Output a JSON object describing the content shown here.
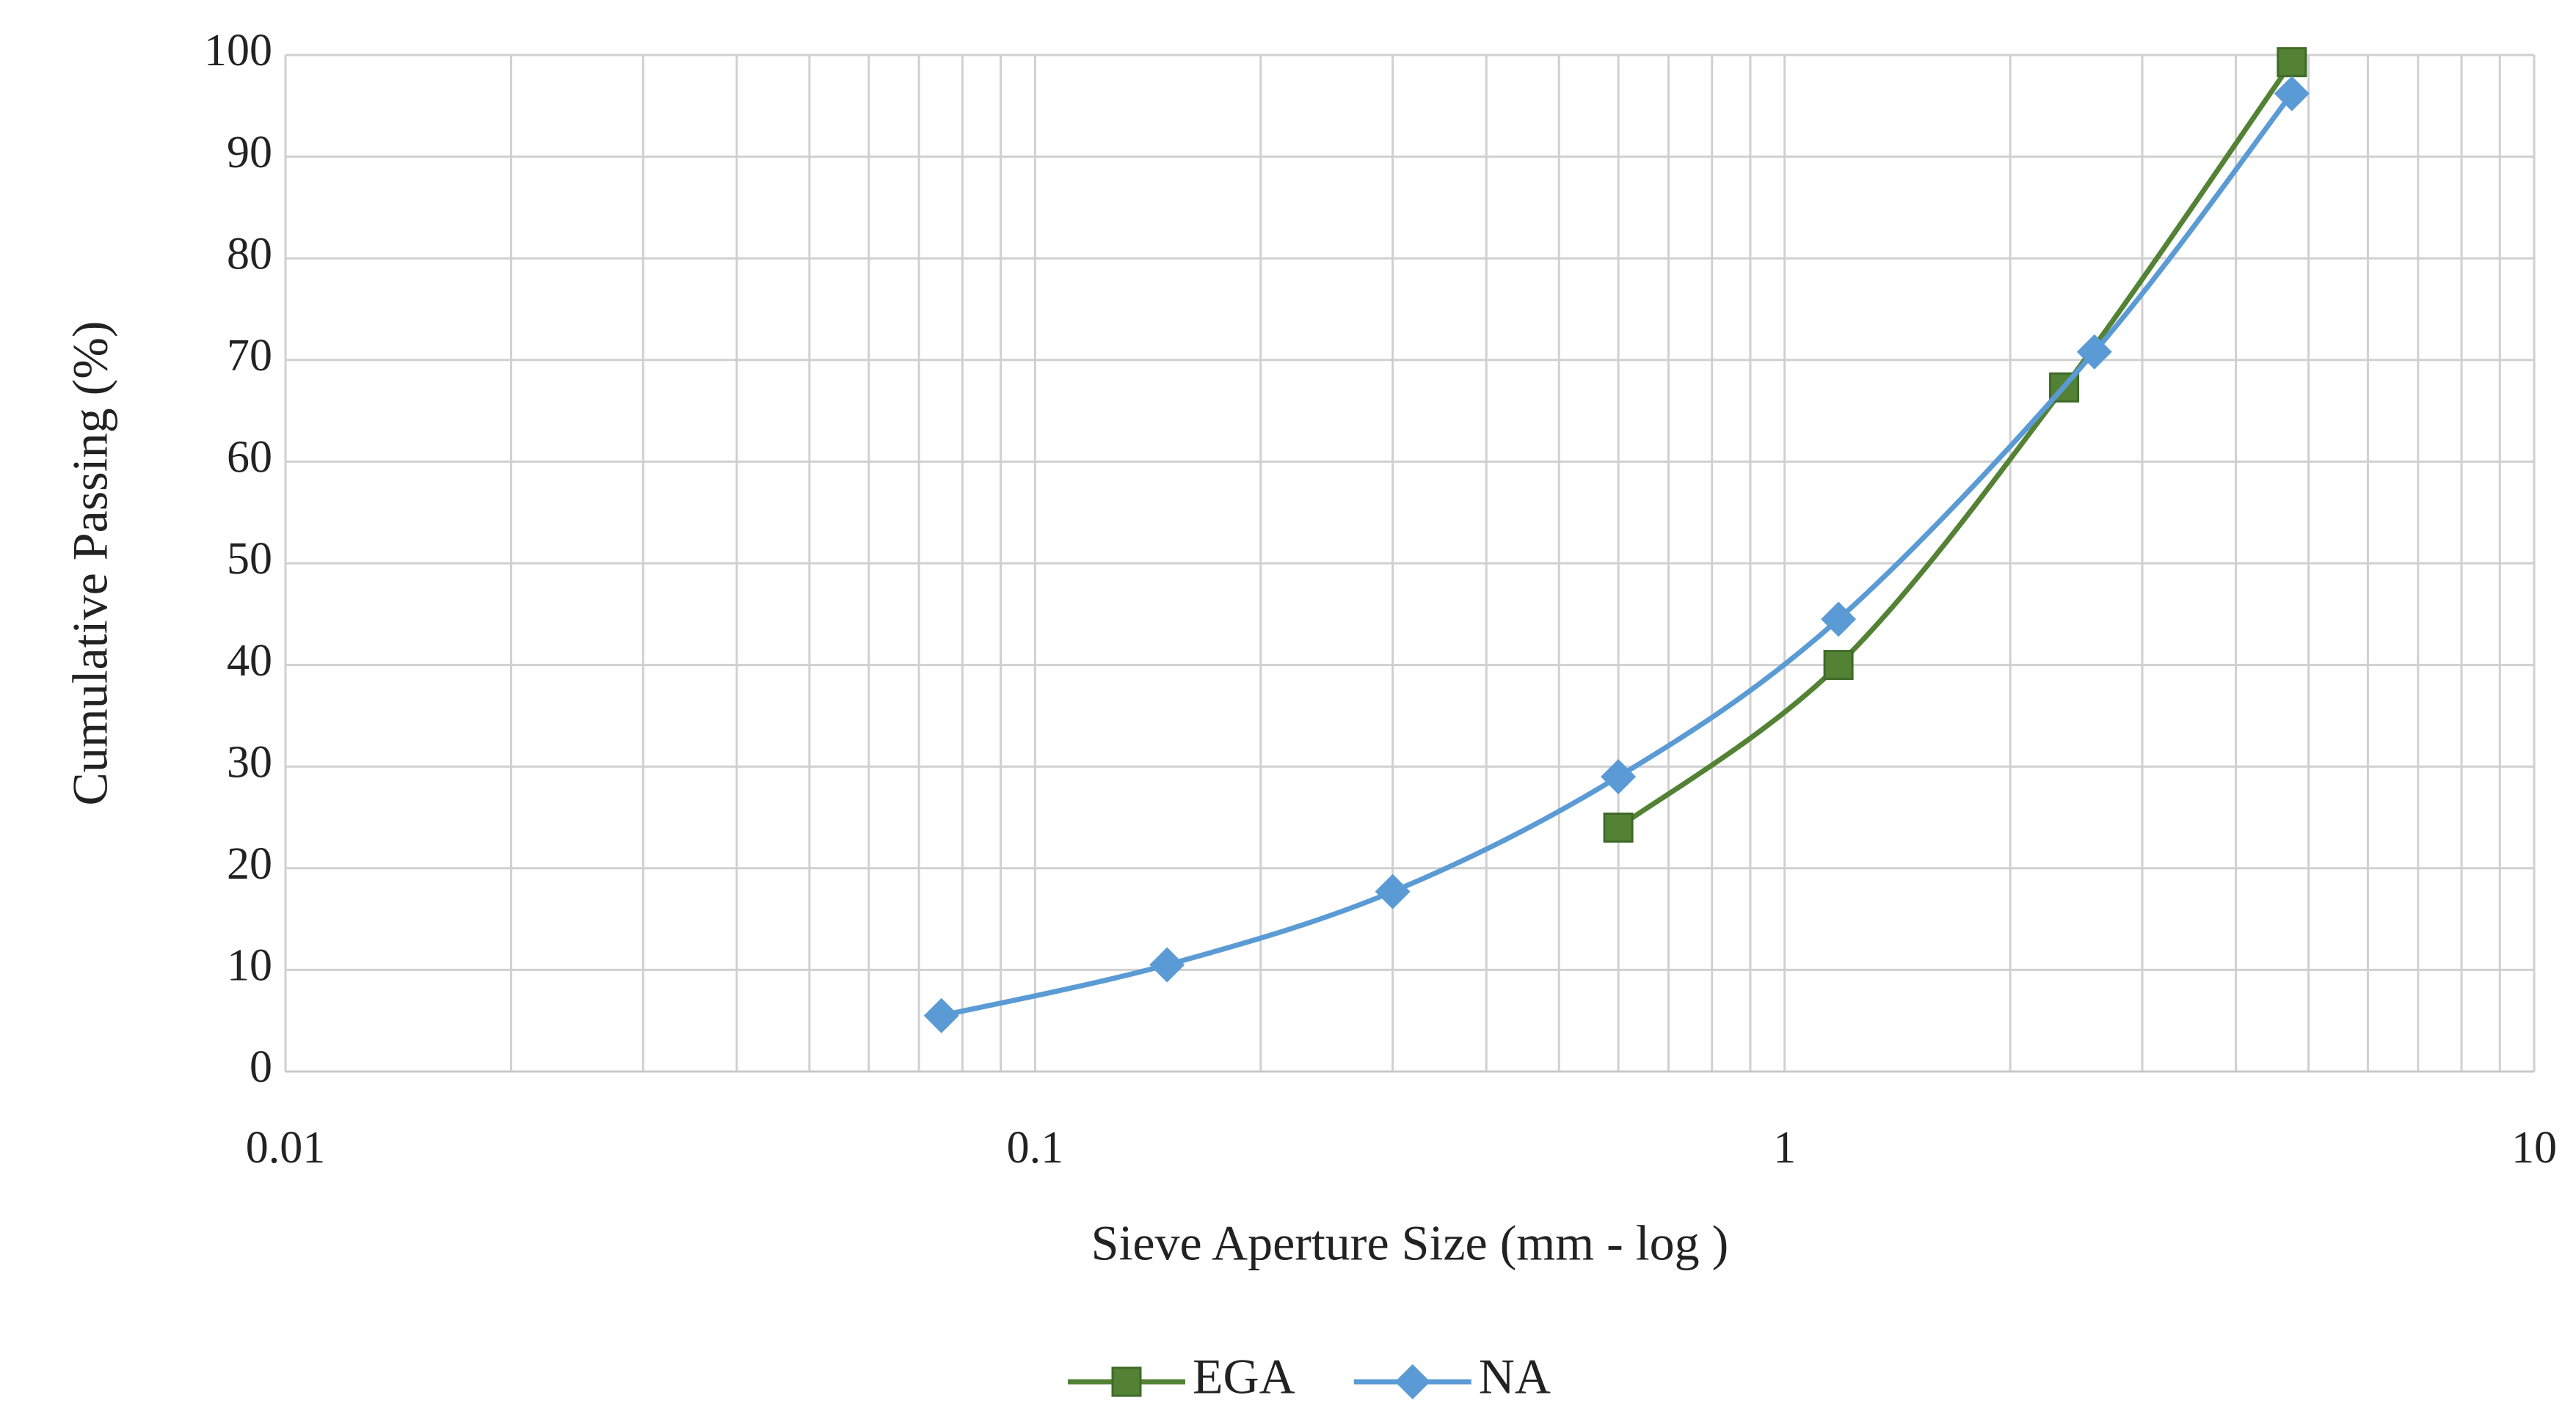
{
  "chart_data": {
    "type": "line",
    "x_label": "Sieve Aperture Size (mm - log )",
    "y_label": "Cumulative Passing (%)",
    "x_log": true,
    "xlim": [
      0.01,
      10
    ],
    "xticks": [
      0.01,
      0.1,
      1,
      10
    ],
    "x_minor_gridlines": [
      0.02,
      0.03,
      0.04,
      0.05,
      0.06,
      0.07,
      0.08,
      0.09,
      0.2,
      0.3,
      0.4,
      0.5,
      0.6,
      0.7,
      0.8,
      0.9,
      2,
      3,
      4,
      5,
      6,
      7,
      8,
      9
    ],
    "ylim": [
      0,
      100
    ],
    "yticks": [
      0,
      10,
      20,
      30,
      40,
      50,
      60,
      70,
      80,
      90,
      100
    ],
    "grid": true,
    "smooth": true,
    "legend": "bottom",
    "series": [
      {
        "name": "EGA",
        "color": "#548235",
        "marker": "square",
        "x": [
          0.6,
          1.18,
          2.36,
          4.75
        ],
        "values": [
          24,
          40,
          67.3,
          99.3
        ]
      },
      {
        "name": "NA",
        "color": "#5b9bd5",
        "marker": "diamond",
        "x": [
          0.075,
          0.15,
          0.3,
          0.6,
          1.18,
          2.59,
          4.75
        ],
        "values": [
          5.5,
          10.5,
          17.7,
          29,
          44.5,
          70.8,
          96.2
        ]
      }
    ]
  }
}
